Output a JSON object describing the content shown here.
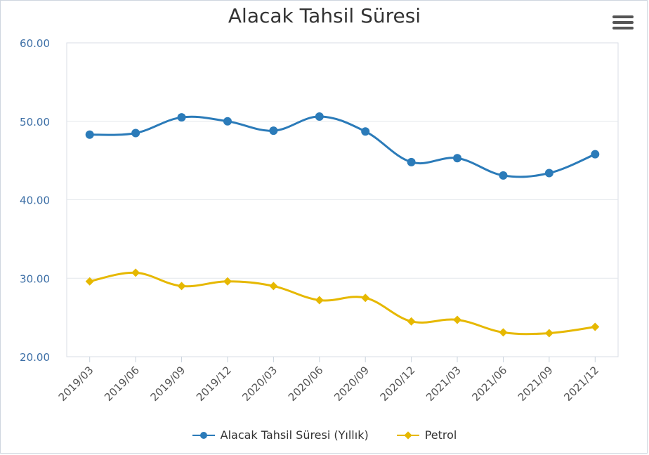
{
  "chart_data": {
    "type": "line",
    "title": "Alacak Tahsil Süresi",
    "categories": [
      "2019/03",
      "2019/06",
      "2019/09",
      "2019/12",
      "2020/03",
      "2020/06",
      "2020/09",
      "2020/12",
      "2021/03",
      "2021/06",
      "2021/09",
      "2021/12"
    ],
    "series": [
      {
        "name": "Alacak Tahsil Süresi (Yıllık)",
        "color": "#2b7bb9",
        "marker": "circle",
        "values": [
          48.3,
          48.5,
          50.5,
          50.0,
          48.8,
          50.6,
          48.7,
          44.8,
          45.3,
          43.1,
          43.4,
          45.8
        ]
      },
      {
        "name": "Petrol",
        "color": "#e6b800",
        "marker": "diamond",
        "values": [
          29.6,
          30.7,
          29.0,
          29.6,
          29.0,
          27.2,
          27.5,
          24.5,
          24.7,
          23.1,
          23.0,
          23.8
        ]
      }
    ],
    "yticks": [
      "20.00",
      "30.00",
      "40.00",
      "50.00",
      "60.00"
    ],
    "ylim": [
      20,
      60
    ],
    "grid": true,
    "legend_position": "bottom-center"
  },
  "menu_icon": "hamburger-menu-icon"
}
